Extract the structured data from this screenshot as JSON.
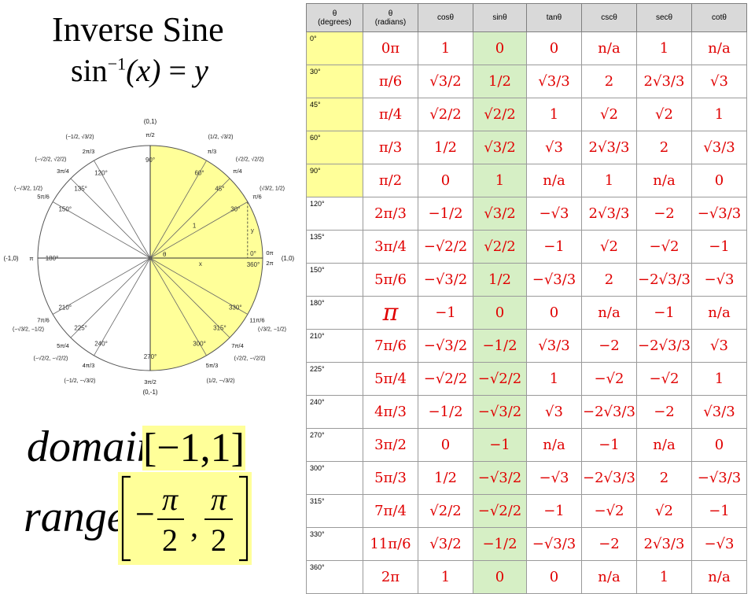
{
  "title": "Inverse Sine",
  "formula": {
    "fn": "sin",
    "exp": "−1",
    "lhs_arg": "(x)",
    "eq": "=",
    "rhs": "y"
  },
  "unit_circle": {
    "axis_points": {
      "top": "(0,1)",
      "bottom": "(0,-1)",
      "left": "(-1,0)",
      "right": "(1,0)"
    },
    "theta_label": "θ",
    "x_label": "x",
    "y_label": "y",
    "one_label": "1",
    "highlight_color": "#ffff99",
    "angles": [
      {
        "deg": 0,
        "label": "0°",
        "rad": "0π",
        "coord": ""
      },
      {
        "deg": 30,
        "label": "30°",
        "rad": "π/6",
        "coord": "(√3/2, 1/2)"
      },
      {
        "deg": 45,
        "label": "45°",
        "rad": "π/4",
        "coord": "(√2/2, √2/2)"
      },
      {
        "deg": 60,
        "label": "60°",
        "rad": "π/3",
        "coord": "(1/2, √3/2)"
      },
      {
        "deg": 90,
        "label": "90°",
        "rad": "π/2",
        "coord": ""
      },
      {
        "deg": 120,
        "label": "120°",
        "rad": "2π/3",
        "coord": "(−1/2, √3/2)"
      },
      {
        "deg": 135,
        "label": "135°",
        "rad": "3π/4",
        "coord": "(−√2/2, √2/2)"
      },
      {
        "deg": 150,
        "label": "150°",
        "rad": "5π/6",
        "coord": "(−√3/2, 1/2)"
      },
      {
        "deg": 180,
        "label": "180°",
        "rad": "π",
        "coord": ""
      },
      {
        "deg": 210,
        "label": "210°",
        "rad": "7π/6",
        "coord": "(−√3/2, −1/2)"
      },
      {
        "deg": 225,
        "label": "225°",
        "rad": "5π/4",
        "coord": "(−√2/2, −√2/2)"
      },
      {
        "deg": 240,
        "label": "240°",
        "rad": "4π/3",
        "coord": "(−1/2, −√3/2)"
      },
      {
        "deg": 270,
        "label": "270°",
        "rad": "3π/2",
        "coord": ""
      },
      {
        "deg": 300,
        "label": "300°",
        "rad": "5π/3",
        "coord": "(1/2, −√3/2)"
      },
      {
        "deg": 315,
        "label": "315°",
        "rad": "7π/4",
        "coord": "(√2/2, −√2/2)"
      },
      {
        "deg": 330,
        "label": "330°",
        "rad": "11π/6",
        "coord": "(√3/2, −1/2)"
      },
      {
        "deg": 360,
        "label": "360°",
        "rad": "2π",
        "coord": ""
      }
    ]
  },
  "domain": {
    "label": "domain",
    "value": "[−1,1]"
  },
  "range": {
    "label": "range",
    "num_left": "π",
    "den_left": "2",
    "num_right": "π",
    "den_right": "2",
    "sign": "−",
    "comma": ","
  },
  "table": {
    "headers": [
      {
        "sym": "θ",
        "sub": "(degrees)"
      },
      {
        "sym": "θ",
        "sub": "(radians)"
      },
      {
        "sym": "cosθ",
        "sub": ""
      },
      {
        "sym": "sinθ",
        "sub": ""
      },
      {
        "sym": "tanθ",
        "sub": ""
      },
      {
        "sym": "cscθ",
        "sub": ""
      },
      {
        "sym": "secθ",
        "sub": ""
      },
      {
        "sym": "cotθ",
        "sub": ""
      }
    ],
    "sin_column_color": "#d6efc5",
    "degree_highlight_color": "#ffff99",
    "rows": [
      {
        "deg": "0°",
        "hl": true,
        "cells": [
          "0π",
          "1",
          "0",
          "0",
          "n/a",
          "1",
          "n/a"
        ]
      },
      {
        "deg": "30°",
        "hl": true,
        "cells": [
          "π/6",
          "√3/2",
          "1/2",
          "√3/3",
          "2",
          "2√3/3",
          "√3"
        ]
      },
      {
        "deg": "45°",
        "hl": true,
        "cells": [
          "π/4",
          "√2/2",
          "√2/2",
          "1",
          "√2",
          "√2",
          "1"
        ]
      },
      {
        "deg": "60°",
        "hl": true,
        "cells": [
          "π/3",
          "1/2",
          "√3/2",
          "√3",
          "2√3/3",
          "2",
          "√3/3"
        ]
      },
      {
        "deg": "90°",
        "hl": true,
        "cells": [
          "π/2",
          "0",
          "1",
          "n/a",
          "1",
          "n/a",
          "0"
        ]
      },
      {
        "deg": "120°",
        "hl": false,
        "cells": [
          "2π/3",
          "−1/2",
          "√3/2",
          "−√3",
          "2√3/3",
          "−2",
          "−√3/3"
        ]
      },
      {
        "deg": "135°",
        "hl": false,
        "cells": [
          "3π/4",
          "−√2/2",
          "√2/2",
          "−1",
          "√2",
          "−√2",
          "−1"
        ]
      },
      {
        "deg": "150°",
        "hl": false,
        "cells": [
          "5π/6",
          "−√3/2",
          "1/2",
          "−√3/3",
          "2",
          "−2√3/3",
          "−√3"
        ]
      },
      {
        "deg": "180°",
        "hl": false,
        "cells": [
          "π",
          "−1",
          "0",
          "0",
          "n/a",
          "−1",
          "n/a"
        ]
      },
      {
        "deg": "210°",
        "hl": false,
        "cells": [
          "7π/6",
          "−√3/2",
          "−1/2",
          "√3/3",
          "−2",
          "−2√3/3",
          "√3"
        ]
      },
      {
        "deg": "225°",
        "hl": false,
        "cells": [
          "5π/4",
          "−√2/2",
          "−√2/2",
          "1",
          "−√2",
          "−√2",
          "1"
        ]
      },
      {
        "deg": "240°",
        "hl": false,
        "cells": [
          "4π/3",
          "−1/2",
          "−√3/2",
          "√3",
          "−2√3/3",
          "−2",
          "√3/3"
        ]
      },
      {
        "deg": "270°",
        "hl": false,
        "cells": [
          "3π/2",
          "0",
          "−1",
          "n/a",
          "−1",
          "n/a",
          "0"
        ]
      },
      {
        "deg": "300°",
        "hl": false,
        "cells": [
          "5π/3",
          "1/2",
          "−√3/2",
          "−√3",
          "−2√3/3",
          "2",
          "−√3/3"
        ]
      },
      {
        "deg": "315°",
        "hl": false,
        "cells": [
          "7π/4",
          "√2/2",
          "−√2/2",
          "−1",
          "−√2",
          "√2",
          "−1"
        ]
      },
      {
        "deg": "330°",
        "hl": false,
        "cells": [
          "11π/6",
          "√3/2",
          "−1/2",
          "−√3/3",
          "−2",
          "2√3/3",
          "−√3"
        ]
      },
      {
        "deg": "360°",
        "hl": false,
        "cells": [
          "2π",
          "1",
          "0",
          "0",
          "n/a",
          "1",
          "n/a"
        ]
      }
    ]
  }
}
